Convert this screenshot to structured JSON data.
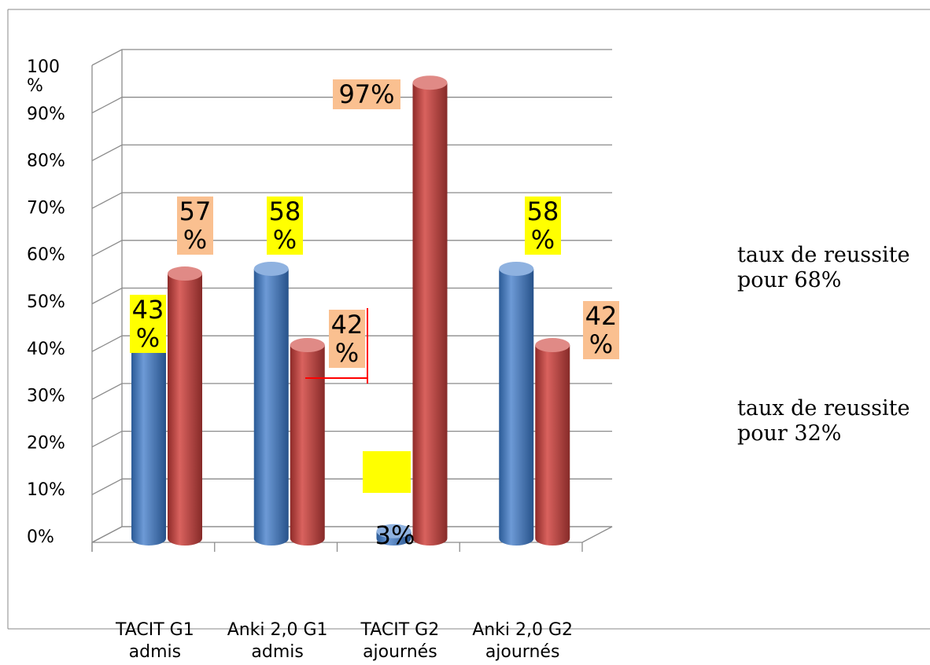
{
  "chart_data": {
    "type": "bar",
    "categories": [
      [
        "TACIT   G1",
        "admis"
      ],
      [
        "Anki 2,0 G1",
        "admis"
      ],
      [
        "TACIT    G2",
        "ajournés"
      ],
      [
        "Anki 2,0 G2",
        "ajournés"
      ]
    ],
    "series": [
      {
        "values": [
          43,
          58,
          3,
          58
        ],
        "color": "#4f81bd",
        "labels": [
          [
            "43",
            "%"
          ],
          [
            "58",
            "%"
          ],
          [
            "3%"
          ],
          [
            "58",
            "%"
          ]
        ],
        "label_bg": [
          "#ffff00",
          "#ffff00",
          "none",
          "#ffff00"
        ]
      },
      {
        "values": [
          57,
          42,
          97,
          42
        ],
        "color": "#c0504d",
        "labels": [
          [
            "57",
            "%"
          ],
          [
            "42",
            "%"
          ],
          [
            "97%"
          ],
          [
            "42",
            "%"
          ]
        ],
        "label_bg": [
          "#fac090",
          "#fac090",
          "#fac090",
          "#fac090"
        ]
      }
    ],
    "y_ticks": [
      [
        "100",
        "%"
      ],
      [
        "90%"
      ],
      [
        "80%"
      ],
      [
        "70%"
      ],
      [
        "60%"
      ],
      [
        "50%"
      ],
      [
        "40%"
      ],
      [
        "30%"
      ],
      [
        "20%"
      ],
      [
        "10%"
      ],
      [
        "0%"
      ]
    ],
    "ylim": [
      0,
      100
    ],
    "grid": true,
    "bar_shape": "cylinder-3d"
  },
  "annotations": [
    [
      "taux de reussite",
      "pour 68%"
    ],
    [
      "taux de reussite",
      "pour 32%"
    ]
  ]
}
